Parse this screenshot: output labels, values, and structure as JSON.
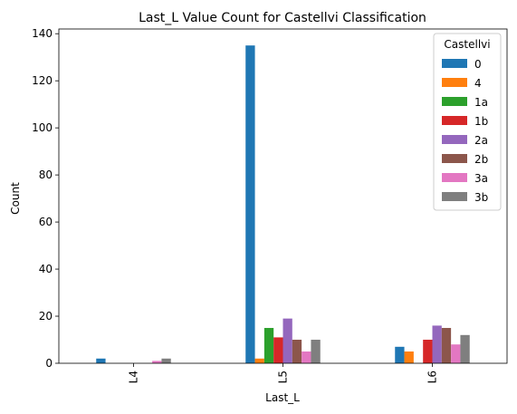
{
  "chart_data": {
    "type": "bar",
    "title": "Last_L Value Count for Castellvi Classification",
    "xlabel": "Last_L",
    "ylabel": "Count",
    "categories": [
      "L4",
      "L5",
      "L6"
    ],
    "ylim": [
      0,
      142
    ],
    "yticks": [
      0,
      20,
      40,
      60,
      80,
      100,
      120,
      140
    ],
    "grid": false,
    "legend": {
      "title": "Castellvi",
      "placement": "top-right"
    },
    "series": [
      {
        "name": "0",
        "color": "#1f77b4",
        "values": [
          2,
          135,
          7
        ]
      },
      {
        "name": "4",
        "color": "#ff7f0e",
        "values": [
          0,
          2,
          5
        ]
      },
      {
        "name": "1a",
        "color": "#2ca02c",
        "values": [
          0,
          15,
          0
        ]
      },
      {
        "name": "1b",
        "color": "#d62728",
        "values": [
          0,
          11,
          10
        ]
      },
      {
        "name": "2a",
        "color": "#9467bd",
        "values": [
          0,
          19,
          16
        ]
      },
      {
        "name": "2b",
        "color": "#8c564b",
        "values": [
          0,
          10,
          15
        ]
      },
      {
        "name": "3a",
        "color": "#e377c2",
        "values": [
          1,
          5,
          8
        ]
      },
      {
        "name": "3b",
        "color": "#7f7f7f",
        "values": [
          2,
          10,
          12
        ]
      }
    ]
  }
}
